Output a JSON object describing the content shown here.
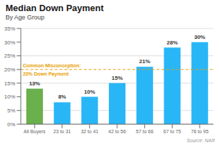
{
  "chart_data": {
    "type": "bar",
    "title": "Median Down Payment",
    "subtitle": "By Age Group",
    "source": "Source: NAR",
    "categories": [
      "All Buyers",
      "23 to 31",
      "32 to 41",
      "42 to 56",
      "57 to 66",
      "67 to 75",
      "76 to 95"
    ],
    "values": [
      13,
      8,
      10,
      15,
      21,
      28,
      30
    ],
    "value_labels": [
      "13%",
      "8%",
      "10%",
      "15%",
      "21%",
      "28%",
      "30%"
    ],
    "data_labels": true,
    "colors": [
      "#6ab04c",
      "#29b6f6",
      "#29b6f6",
      "#29b6f6",
      "#29b6f6",
      "#29b6f6",
      "#29b6f6"
    ],
    "ylim": [
      0,
      35
    ],
    "yticks": [
      {
        "value": 0,
        "label": "0%"
      },
      {
        "value": 5,
        "label": "5%"
      },
      {
        "value": 10,
        "label": "10%"
      },
      {
        "value": 15,
        "label": "15%"
      },
      {
        "value": 20,
        "label": "20%"
      },
      {
        "value": 25,
        "label": "25%"
      },
      {
        "value": 30,
        "label": "30%"
      },
      {
        "value": 35,
        "label": "35%"
      }
    ],
    "grid": true,
    "reference_line": {
      "value": 20,
      "color": "#e8a000",
      "line_style": "dashed",
      "label_above": "Common Misconception:",
      "label_below": "20% Down Payment"
    }
  }
}
